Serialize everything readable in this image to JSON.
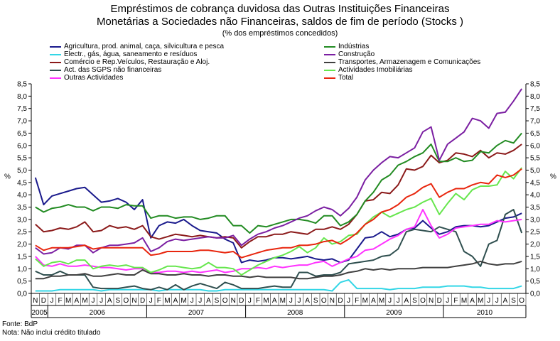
{
  "title_line1": "Empréstimos de cobrança duvidosa das Outras Instituições Financeiras",
  "title_line2": "Monetárias a Sociedades não Financeiras, saldos de fim de período (Stocks )",
  "subtitle": "(% dos empréstimos concedidos)",
  "footnote_source": "Fonte: BdP",
  "footnote_note": "Nota: Não inclui crédito titulado",
  "chart_data": {
    "type": "line",
    "title": "Empréstimos de cobrança duvidosa das Outras Instituições Financeiras Monetárias a Sociedades não Financeiras, saldos de fim de período (Stocks )",
    "ylabel_left": "%",
    "ylabel_right": "%",
    "ylim": [
      0,
      8.5
    ],
    "ytick_step": 0.5,
    "x_months": [
      "N",
      "D",
      "J",
      "F",
      "M",
      "A",
      "M",
      "J",
      "J",
      "A",
      "S",
      "O",
      "N",
      "D",
      "J",
      "F",
      "M",
      "A",
      "M",
      "J",
      "J",
      "A",
      "S",
      "O",
      "N",
      "D",
      "J",
      "F",
      "M",
      "A",
      "M",
      "J",
      "J",
      "A",
      "S",
      "O",
      "N",
      "D",
      "J",
      "F",
      "M",
      "A",
      "M",
      "J",
      "J",
      "A",
      "S",
      "O",
      "N",
      "D",
      "J",
      "F",
      "M",
      "A",
      "M",
      "J",
      "J",
      "A",
      "S",
      "O"
    ],
    "x_years": [
      {
        "label": "2005",
        "start": 0,
        "end": 1
      },
      {
        "label": "2006",
        "start": 2,
        "end": 13
      },
      {
        "label": "2007",
        "start": 14,
        "end": 25
      },
      {
        "label": "2008",
        "start": 26,
        "end": 37
      },
      {
        "label": "2009",
        "start": 38,
        "end": 49
      },
      {
        "label": "2010",
        "start": 50,
        "end": 59
      }
    ],
    "series": [
      {
        "name": "Agricultura, prod. animal, caça, silvicultura e pesca",
        "color": "#1a1a8c",
        "values": [
          4.7,
          3.6,
          3.95,
          4.05,
          4.15,
          4.25,
          4.3,
          4.0,
          3.7,
          3.75,
          3.85,
          3.7,
          3.4,
          3.8,
          2.25,
          2.75,
          2.9,
          2.85,
          3.0,
          2.75,
          2.55,
          2.5,
          2.45,
          2.2,
          2.05,
          1.25,
          1.35,
          1.3,
          1.35,
          1.45,
          1.45,
          1.4,
          1.45,
          1.5,
          1.4,
          1.35,
          1.4,
          1.25,
          1.35,
          1.8,
          2.25,
          2.3,
          2.5,
          2.3,
          2.4,
          2.6,
          2.65,
          2.95,
          2.65,
          2.4,
          2.5,
          2.7,
          2.75,
          2.75,
          2.7,
          2.75,
          2.9,
          3.05,
          3.1,
          3.25
        ]
      },
      {
        "name": "Electr., gás, água, saneamento e resíduos",
        "color": "#33d6e6",
        "values": [
          0.1,
          0.1,
          0.1,
          0.15,
          0.15,
          0.15,
          0.15,
          0.15,
          0.1,
          0.15,
          0.15,
          0.15,
          0.15,
          0.15,
          0.15,
          0.1,
          0.15,
          0.15,
          0.15,
          0.15,
          0.15,
          0.1,
          0.1,
          0.15,
          0.15,
          0.15,
          0.15,
          0.15,
          0.15,
          0.15,
          0.15,
          0.15,
          0.15,
          0.15,
          0.15,
          0.15,
          0.1,
          0.45,
          0.55,
          0.2,
          0.2,
          0.2,
          0.2,
          0.15,
          0.2,
          0.2,
          0.2,
          0.25,
          0.25,
          0.25,
          0.3,
          0.3,
          0.3,
          0.25,
          0.25,
          0.2,
          0.2,
          0.2,
          0.2,
          0.3
        ]
      },
      {
        "name": "Comércio e Rep.Veículos, Restauração e Aloj.",
        "color": "#8b1a1a",
        "values": [
          2.8,
          2.5,
          2.55,
          2.65,
          2.6,
          2.7,
          2.9,
          2.5,
          2.55,
          2.75,
          2.65,
          2.7,
          2.6,
          2.75,
          2.3,
          2.2,
          2.3,
          2.4,
          2.35,
          2.3,
          2.35,
          2.3,
          2.25,
          2.3,
          2.25,
          1.85,
          2.1,
          2.3,
          2.3,
          2.4,
          2.4,
          2.5,
          2.45,
          2.4,
          2.6,
          2.6,
          2.7,
          2.6,
          2.8,
          3.2,
          3.75,
          3.8,
          4.1,
          4.05,
          4.4,
          5.05,
          5.0,
          5.15,
          5.6,
          5.3,
          5.4,
          5.7,
          5.65,
          5.55,
          5.8,
          5.5,
          5.7,
          5.65,
          5.8,
          6.05
        ]
      },
      {
        "name": "Act. das SGPS não financeiras",
        "color": "#2f4f4f",
        "values": [
          0.9,
          0.75,
          0.75,
          0.9,
          0.75,
          0.75,
          0.75,
          0.25,
          0.2,
          0.2,
          0.2,
          0.25,
          0.3,
          0.2,
          0.15,
          0.25,
          0.15,
          0.35,
          0.15,
          0.3,
          0.4,
          0.3,
          0.2,
          0.45,
          0.35,
          0.2,
          0.2,
          0.2,
          0.25,
          0.3,
          0.25,
          0.25,
          0.85,
          0.85,
          0.7,
          0.75,
          0.75,
          0.85,
          1.2,
          1.25,
          1.3,
          1.35,
          1.5,
          1.55,
          1.8,
          2.5,
          2.6,
          2.55,
          2.5,
          2.7,
          2.6,
          2.5,
          1.7,
          1.5,
          1.1,
          2.0,
          2.15,
          3.2,
          3.4,
          2.45
        ]
      },
      {
        "name": "Outras Actividades",
        "color": "#ff33ff",
        "values": [
          1.5,
          1.15,
          1.1,
          1.2,
          1.1,
          1.1,
          1.15,
          1.1,
          1.05,
          1.05,
          1.0,
          0.95,
          1.0,
          1.0,
          0.85,
          0.85,
          0.9,
          0.9,
          0.85,
          0.9,
          0.85,
          0.9,
          0.95,
          0.85,
          0.9,
          1.0,
          1.0,
          1.05,
          1.0,
          1.1,
          1.05,
          1.1,
          1.15,
          1.15,
          1.25,
          1.3,
          1.1,
          1.25,
          1.4,
          1.5,
          1.75,
          1.8,
          2.0,
          2.2,
          2.35,
          2.6,
          2.7,
          3.4,
          2.75,
          2.25,
          2.4,
          2.65,
          2.7,
          2.75,
          2.8,
          2.8,
          2.95,
          2.9,
          2.95,
          3.0
        ]
      },
      {
        "name": "Indústrias",
        "color": "#228b22",
        "values": [
          3.5,
          3.3,
          3.45,
          3.5,
          3.6,
          3.5,
          3.5,
          3.35,
          3.5,
          3.5,
          3.45,
          3.6,
          3.55,
          3.55,
          3.05,
          3.15,
          3.15,
          3.05,
          3.1,
          3.1,
          3.0,
          3.05,
          3.15,
          3.15,
          2.75,
          2.75,
          2.45,
          2.75,
          2.7,
          2.8,
          2.9,
          3.0,
          3.0,
          2.95,
          2.85,
          3.15,
          3.15,
          2.75,
          2.9,
          3.2,
          3.75,
          4.1,
          4.6,
          4.8,
          5.2,
          5.35,
          5.55,
          5.7,
          6.05,
          5.35,
          5.35,
          5.5,
          5.35,
          5.4,
          5.75,
          5.7,
          6.0,
          6.2,
          6.1,
          6.5
        ]
      },
      {
        "name": "Construção",
        "color": "#7b1fa2",
        "values": [
          1.85,
          1.6,
          1.65,
          1.85,
          1.8,
          1.95,
          1.95,
          1.65,
          1.85,
          1.95,
          1.95,
          2.0,
          2.05,
          2.25,
          1.7,
          1.85,
          2.1,
          2.2,
          2.15,
          2.2,
          2.25,
          2.3,
          2.25,
          2.25,
          2.35,
          1.95,
          2.2,
          2.4,
          2.5,
          2.65,
          2.75,
          2.9,
          3.05,
          3.15,
          3.35,
          3.5,
          3.4,
          3.15,
          3.45,
          3.9,
          4.6,
          5.0,
          5.3,
          5.55,
          5.5,
          5.7,
          5.9,
          6.55,
          6.75,
          5.4,
          6.05,
          6.3,
          6.55,
          7.1,
          7.0,
          6.7,
          7.3,
          7.35,
          7.8,
          8.3
        ]
      },
      {
        "name": "Transportes, Armazenagem e Comunicações",
        "color": "#404040",
        "values": [
          0.6,
          0.6,
          0.7,
          0.7,
          0.75,
          0.75,
          0.8,
          0.7,
          0.7,
          0.75,
          0.8,
          0.75,
          0.75,
          0.95,
          0.8,
          0.8,
          0.75,
          0.75,
          0.8,
          0.75,
          0.75,
          0.7,
          0.75,
          0.75,
          0.7,
          0.7,
          0.65,
          0.7,
          0.65,
          0.65,
          0.65,
          0.65,
          0.6,
          0.6,
          0.65,
          0.7,
          0.7,
          0.75,
          0.85,
          0.9,
          1.0,
          0.95,
          1.0,
          0.95,
          1.0,
          1.0,
          1.0,
          1.05,
          1.05,
          1.05,
          1.05,
          1.1,
          1.15,
          1.2,
          1.3,
          1.2,
          1.15,
          1.2,
          1.2,
          1.3
        ]
      },
      {
        "name": "Actividades Imobiliárias",
        "color": "#66e64d",
        "values": [
          1.4,
          1.1,
          1.25,
          1.3,
          1.2,
          1.35,
          1.35,
          1.0,
          1.1,
          1.15,
          1.1,
          1.15,
          1.05,
          1.05,
          0.85,
          0.95,
          1.1,
          1.1,
          1.05,
          1.0,
          1.05,
          1.25,
          1.05,
          1.05,
          1.0,
          0.75,
          0.95,
          1.15,
          1.3,
          1.45,
          1.55,
          1.7,
          1.9,
          1.65,
          1.85,
          2.25,
          2.0,
          2.1,
          2.35,
          2.4,
          2.8,
          3.1,
          3.3,
          3.1,
          3.25,
          3.4,
          3.5,
          3.7,
          3.85,
          3.2,
          3.65,
          4.05,
          3.8,
          4.2,
          4.35,
          4.35,
          4.4,
          4.95,
          4.65,
          5.1
        ]
      },
      {
        "name": "Total",
        "color": "#e8260e",
        "values": [
          1.95,
          1.75,
          1.85,
          1.85,
          1.85,
          1.9,
          1.95,
          1.8,
          1.85,
          1.85,
          1.85,
          1.85,
          1.85,
          1.85,
          1.55,
          1.6,
          1.7,
          1.7,
          1.7,
          1.7,
          1.75,
          1.75,
          1.7,
          1.65,
          1.7,
          1.45,
          1.55,
          1.65,
          1.75,
          1.8,
          1.85,
          1.85,
          1.95,
          1.95,
          2.0,
          2.1,
          2.15,
          2.0,
          2.2,
          2.45,
          2.8,
          3.0,
          3.3,
          3.4,
          3.6,
          3.9,
          4.05,
          4.3,
          4.45,
          3.9,
          4.1,
          4.25,
          4.25,
          4.4,
          4.5,
          4.45,
          4.8,
          4.7,
          4.8,
          5.05
        ]
      }
    ]
  }
}
